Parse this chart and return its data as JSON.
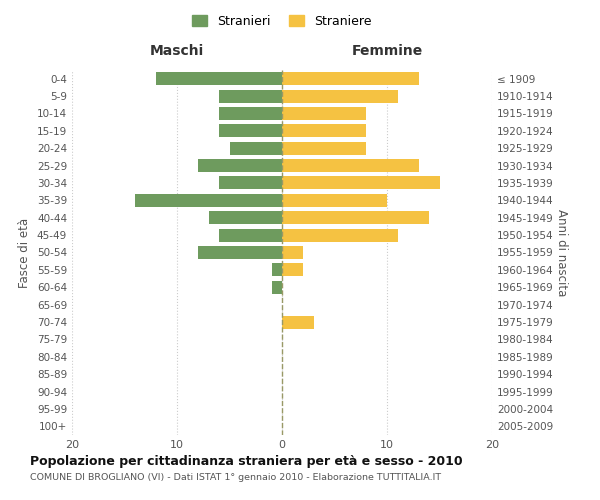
{
  "age_groups": [
    "0-4",
    "5-9",
    "10-14",
    "15-19",
    "20-24",
    "25-29",
    "30-34",
    "35-39",
    "40-44",
    "45-49",
    "50-54",
    "55-59",
    "60-64",
    "65-69",
    "70-74",
    "75-79",
    "80-84",
    "85-89",
    "90-94",
    "95-99",
    "100+"
  ],
  "birth_years": [
    "2005-2009",
    "2000-2004",
    "1995-1999",
    "1990-1994",
    "1985-1989",
    "1980-1984",
    "1975-1979",
    "1970-1974",
    "1965-1969",
    "1960-1964",
    "1955-1959",
    "1950-1954",
    "1945-1949",
    "1940-1944",
    "1935-1939",
    "1930-1934",
    "1925-1929",
    "1920-1924",
    "1915-1919",
    "1910-1914",
    "≤ 1909"
  ],
  "males": [
    12,
    6,
    6,
    6,
    5,
    8,
    6,
    14,
    7,
    6,
    8,
    1,
    1,
    0,
    0,
    0,
    0,
    0,
    0,
    0,
    0
  ],
  "females": [
    13,
    11,
    8,
    8,
    8,
    13,
    15,
    10,
    14,
    11,
    2,
    2,
    0,
    0,
    3,
    0,
    0,
    0,
    0,
    0,
    0
  ],
  "male_color": "#6e9b5e",
  "female_color": "#f5c242",
  "title": "Popolazione per cittadinanza straniera per età e sesso - 2010",
  "subtitle": "COMUNE DI BROGLIANO (VI) - Dati ISTAT 1° gennaio 2010 - Elaborazione TUTTITALIA.IT",
  "xlabel_left": "Maschi",
  "xlabel_right": "Femmine",
  "ylabel_left": "Fasce di età",
  "ylabel_right": "Anni di nascita",
  "legend_male": "Stranieri",
  "legend_female": "Straniere",
  "xlim": 20,
  "background_color": "#ffffff",
  "grid_color": "#cccccc"
}
